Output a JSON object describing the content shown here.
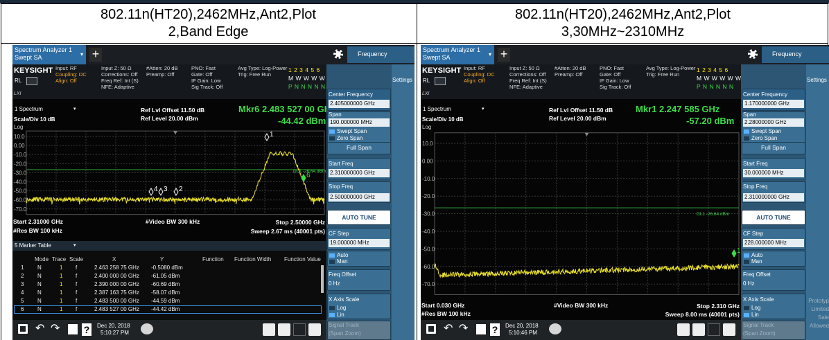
{
  "panels": [
    {
      "caption": "802.11n(HT20),2462MHz,Ant2,Plot 2,Band Edge",
      "tab": [
        "Spectrum Analyzer 1",
        "Swept SA"
      ],
      "mode": "Frequency",
      "info": {
        "brand": "KEYSIGHT",
        "rl": "RL",
        "lxi": "LXI",
        "columns": [
          [
            "Input: RF",
            "Coupling: DC",
            "Align: Off"
          ],
          [
            "Input Z: 50 Ω",
            "Corrections: Off",
            "Freq Ref: Int (S)",
            "NFE: Adaptive"
          ],
          [
            "#Atten: 20 dB",
            "Preamp: Off"
          ],
          [
            "PNO: Fast",
            "Gate: Off",
            "IF Gain: Low",
            "Sig Track: Off"
          ],
          [
            "Avg Type: Log-Power",
            "Trig: Free Run"
          ]
        ],
        "trace_rows": [
          "1 2 3 4 5 6",
          "M W W W W W",
          "P N N N N N"
        ]
      },
      "graph": {
        "window": "1 Spectrum",
        "scale": "Scale/Div 10 dB",
        "log": "Log",
        "ref_offset": "Ref Lvl Offset 11.50 dB",
        "ref_level": "Ref Level 20.00 dBm",
        "marker": "Mkr6  2.483 527 00 GHz",
        "marker_value": "-44.42 dBm",
        "y_labels": [
          "10.0",
          "0.00",
          "-10.0",
          "-20.0",
          "-30.0",
          "-40.0",
          "-50.0",
          "-60.0",
          "-70.0"
        ],
        "markers": [
          "1",
          "2",
          "3",
          "4",
          "6"
        ],
        "display_line": "DL1 -26.64 dBm",
        "start": "Start 2.31000 GHz",
        "rbw": "#Res BW 100 kHz",
        "vbw": "#Video BW 300 kHz",
        "stop": "Stop 2.50000 GHz",
        "sweep": "Sweep 2.67 ms (40001 pts)"
      },
      "marker_table": {
        "title": "5 Marker Table",
        "headers": [
          "Mode",
          "Trace",
          "Scale",
          "X",
          "Y",
          "Function",
          "Function Width",
          "Function Value"
        ],
        "rows": [
          [
            "1",
            "N",
            "1",
            "f",
            "2.463 258 75 GHz",
            "-0.5080 dBm"
          ],
          [
            "2",
            "N",
            "1",
            "f",
            "2.400 000 00 GHz",
            "-61.05 dBm"
          ],
          [
            "3",
            "N",
            "1",
            "f",
            "2.390 000 00 GHz",
            "-60.69 dBm"
          ],
          [
            "4",
            "N",
            "1",
            "f",
            "2.387 163 75 GHz",
            "-58.07 dBm"
          ],
          [
            "5",
            "N",
            "1",
            "f",
            "2.483 500 00 GHz",
            "-44.59 dBm"
          ],
          [
            "6",
            "N",
            "1",
            "f",
            "2.483 527 00 GHz",
            "-44.42 dBm"
          ]
        ]
      },
      "side": [
        "Center Frequency",
        "2.405000000 GHz",
        "Span",
        "190.000000 MHz",
        "Swept Span",
        "Zero Span",
        "Full Span",
        "Start Freq",
        "2.310000000 GHz",
        "Stop Freq",
        "2.500000000 GHz",
        "AUTO TUNE",
        "CF Step",
        "19.000000 MHz",
        "Auto",
        "Man",
        "Freq Offset",
        "0 Hz",
        "X Axis Scale",
        "Log",
        "Lin",
        "Signal Track",
        "(Span Zoom)"
      ],
      "settings": "Settings",
      "footer": {
        "date": "Dec 20, 2018",
        "time": "5:10:27 PM"
      }
    },
    {
      "caption": "802.11n(HT20),2462MHz,Ant2,Plot 3,30MHz~2310MHz",
      "tab": [
        "Spectrum Analyzer 1",
        "Swept SA"
      ],
      "mode": "Frequency",
      "info": {
        "brand": "KEYSIGHT",
        "rl": "RL",
        "lxi": "LXI",
        "columns": [
          [
            "Input: RF",
            "Coupling: DC",
            "Align: Off"
          ],
          [
            "Input Z: 50 Ω",
            "Corrections: Off",
            "Freq Ref: Int (S)",
            "NFE: Adaptive"
          ],
          [
            "#Atten: 20 dB",
            "Preamp: Off"
          ],
          [
            "PNO: Fast",
            "Gate: Off",
            "IF Gain: Low",
            "Sig Track: Off"
          ],
          [
            "Avg Type: Log-Power",
            "Trig: Free Run"
          ]
        ],
        "trace_rows": [
          "1 2 3 4 5 6",
          "M W W W W W",
          "P N N N N N"
        ]
      },
      "graph": {
        "window": "1 Spectrum",
        "scale": "Scale/Div 10 dB",
        "log": "Log",
        "ref_offset": "Ref Lvl Offset 11.50 dB",
        "ref_level": "Ref Level 20.00 dBm",
        "marker": "Mkr1  2.247 585 GHz",
        "marker_value": "-57.20 dBm",
        "y_labels": [
          "10.0",
          "0.00",
          "-10.0",
          "-20.0",
          "-30.0",
          "-40.0",
          "-50.0",
          "-60.0",
          "-70.0"
        ],
        "markers": [
          "1"
        ],
        "display_line": "DL1 -26.64 dBm",
        "start": "Start 0.030 GHz",
        "rbw": "#Res BW 100 kHz",
        "vbw": "#Video BW 300 kHz",
        "stop": "Stop 2.310 GHz",
        "sweep": "Sweep 8.00 ms (40001 pts)"
      },
      "side": [
        "Center Frequency",
        "1.170000000 GHz",
        "Span",
        "2.28000000 GHz",
        "Swept Span",
        "Zero Span",
        "Full Span",
        "Start Freq",
        "30.000000 MHz",
        "Stop Freq",
        "2.310000000 GHz",
        "AUTO TUNE",
        "CF Step",
        "228.000000 MHz",
        "Auto",
        "Man",
        "Freq Offset",
        "0 Hz",
        "X Axis Scale",
        "Log",
        "Lin",
        "Signal Track",
        "(Span Zoom)"
      ],
      "settings": "Settings",
      "notice": [
        "Prototyp",
        "Limited",
        "Sale",
        "Allowed"
      ],
      "footer": {
        "date": "Dec 20, 2018",
        "time": "5:10:46 PM"
      }
    }
  ]
}
